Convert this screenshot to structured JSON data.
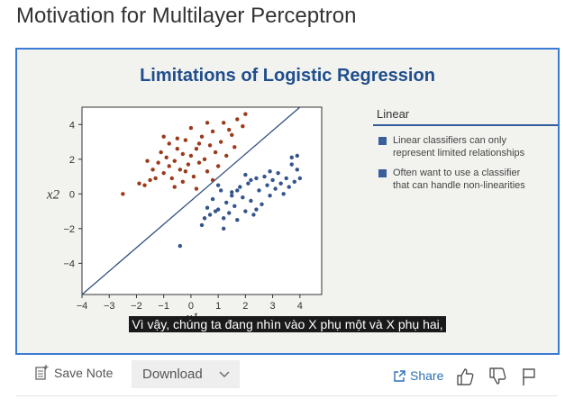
{
  "page": {
    "title": "Motivation for Multilayer Perceptron"
  },
  "slide": {
    "title": "Limitations of Logistic Regression",
    "panel": {
      "heading": "Linear",
      "bullets": [
        {
          "line1": "Linear classifiers can only",
          "line2": "represent limited relationships"
        },
        {
          "line1": "Often want to use a classifier",
          "line2": "that can handle non-linearities"
        }
      ]
    },
    "caption": "Vì vậy, chúng ta đang nhìn vào X phụ một và X phụ hai,"
  },
  "chart_data": {
    "type": "scatter",
    "xlabel": "x1",
    "ylabel": "x2",
    "xlim": [
      -4,
      4.8
    ],
    "ylim": [
      -5.8,
      5
    ],
    "xticks": [
      "−4",
      "−3",
      "−2",
      "−1",
      "0",
      "1",
      "2",
      "3",
      "4"
    ],
    "yticks": [
      "4",
      "2",
      "0",
      "−2",
      "−4"
    ],
    "decision_line": {
      "x": [
        -4,
        4
      ],
      "y": [
        -5.8,
        5
      ]
    },
    "series": [
      {
        "color": "#9b3a1a",
        "points": [
          [
            -2.5,
            0.0
          ],
          [
            -1.9,
            0.6
          ],
          [
            -1.7,
            0.5
          ],
          [
            -1.5,
            0.8
          ],
          [
            -1.4,
            1.4
          ],
          [
            -1.3,
            0.9
          ],
          [
            -1.2,
            1.8
          ],
          [
            -1.1,
            2.4
          ],
          [
            -1.0,
            1.2
          ],
          [
            -0.9,
            2.1
          ],
          [
            -0.8,
            1.6
          ],
          [
            -0.8,
            2.9
          ],
          [
            -0.7,
            0.9
          ],
          [
            -0.6,
            1.9
          ],
          [
            -0.5,
            2.6
          ],
          [
            -0.4,
            1.4
          ],
          [
            -0.3,
            2.3
          ],
          [
            -0.2,
            3.1
          ],
          [
            -0.1,
            1.7
          ],
          [
            0.0,
            2.2
          ],
          [
            0.1,
            1.0
          ],
          [
            0.2,
            2.6
          ],
          [
            0.3,
            1.8
          ],
          [
            0.4,
            3.3
          ],
          [
            0.5,
            2.0
          ],
          [
            0.6,
            1.3
          ],
          [
            0.7,
            2.8
          ],
          [
            0.8,
            3.6
          ],
          [
            0.9,
            2.4
          ],
          [
            1.0,
            1.6
          ],
          [
            1.1,
            3.0
          ],
          [
            1.2,
            4.1
          ],
          [
            1.3,
            2.2
          ],
          [
            1.5,
            3.4
          ],
          [
            1.6,
            2.7
          ],
          [
            1.7,
            4.3
          ],
          [
            1.9,
            3.9
          ],
          [
            2.0,
            4.6
          ],
          [
            -0.6,
            0.4
          ],
          [
            -0.3,
            0.7
          ],
          [
            0.2,
            0.3
          ],
          [
            0.8,
            0.8
          ],
          [
            -1.0,
            3.3
          ],
          [
            0.0,
            3.8
          ],
          [
            -0.5,
            3.2
          ],
          [
            0.6,
            4.1
          ],
          [
            1.4,
            3.7
          ],
          [
            -1.6,
            1.9
          ],
          [
            0.3,
            2.9
          ],
          [
            -0.2,
            1.3
          ]
        ]
      },
      {
        "color": "#33558c",
        "points": [
          [
            -0.4,
            -3.0
          ],
          [
            0.4,
            -1.8
          ],
          [
            0.6,
            -0.8
          ],
          [
            0.7,
            -1.2
          ],
          [
            0.8,
            -0.3
          ],
          [
            1.0,
            -0.9
          ],
          [
            1.1,
            0.2
          ],
          [
            1.2,
            -1.4
          ],
          [
            1.3,
            -0.5
          ],
          [
            1.4,
            -1.1
          ],
          [
            1.5,
            0.1
          ],
          [
            1.6,
            -0.7
          ],
          [
            1.7,
            -1.5
          ],
          [
            1.8,
            0.4
          ],
          [
            1.9,
            -0.2
          ],
          [
            2.0,
            -1.0
          ],
          [
            2.1,
            0.6
          ],
          [
            2.2,
            -0.4
          ],
          [
            2.3,
            -1.2
          ],
          [
            2.4,
            0.9
          ],
          [
            2.5,
            0.2
          ],
          [
            2.6,
            -0.6
          ],
          [
            2.7,
            1.0
          ],
          [
            2.8,
            0.5
          ],
          [
            2.9,
            -0.1
          ],
          [
            3.0,
            0.8
          ],
          [
            3.1,
            0.3
          ],
          [
            3.2,
            1.2
          ],
          [
            3.3,
            0.6
          ],
          [
            3.4,
            0.0
          ],
          [
            3.5,
            0.9
          ],
          [
            3.6,
            0.4
          ],
          [
            3.7,
            1.7
          ],
          [
            3.8,
            0.7
          ],
          [
            3.9,
            1.4
          ],
          [
            4.0,
            0.9
          ],
          [
            3.7,
            2.1
          ],
          [
            3.9,
            2.2
          ],
          [
            1.0,
            0.5
          ],
          [
            2.0,
            1.1
          ],
          [
            1.2,
            -2.0
          ],
          [
            0.9,
            -1.0
          ],
          [
            2.4,
            -0.9
          ],
          [
            1.7,
            0.2
          ],
          [
            2.9,
            1.3
          ],
          [
            1.5,
            -0.1
          ],
          [
            2.2,
            0.8
          ],
          [
            0.5,
            -1.4
          ]
        ]
      }
    ]
  },
  "toolbar": {
    "save_note": "Save Note",
    "download": "Download",
    "share": "Share"
  },
  "colors": {
    "accent": "#3a7bd5",
    "slide_title": "#1f4e8c",
    "bullet": "#3a5f9a"
  }
}
